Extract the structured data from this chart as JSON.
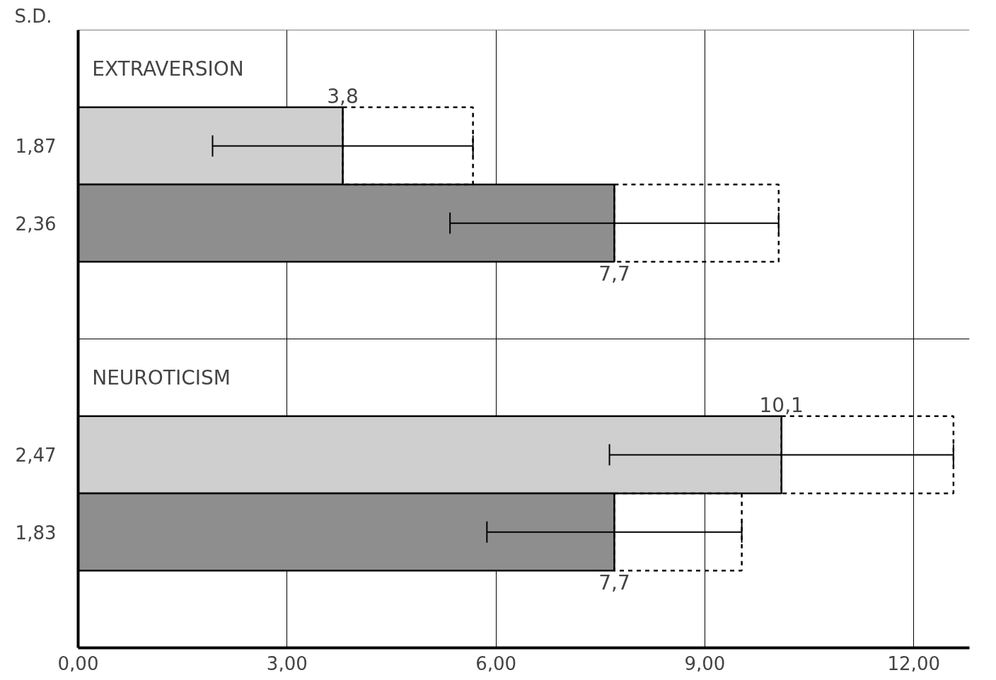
{
  "chart_data": {
    "type": "bar",
    "orientation": "horizontal",
    "categories": [
      null,
      "1,87",
      "2,36",
      null,
      null,
      "2,47",
      "1,83",
      null
    ],
    "values": [
      null,
      3.8,
      7.7,
      null,
      null,
      10.1,
      7.7,
      null
    ],
    "colors": [
      "#cfcfcf",
      "#cfcfcf",
      "#8e8e8e",
      "#cfcfcf",
      "#cfcfcf",
      "#cfcfcf",
      "#8e8e8e",
      "#cfcfcf"
    ],
    "errors": [
      null,
      1.87,
      2.36,
      null,
      null,
      2.47,
      1.83,
      null
    ],
    "value_labels": [
      null,
      "3,8",
      "7,7",
      null,
      null,
      "10,1",
      "7,7",
      null
    ],
    "annotations": [
      "S.D.",
      "EXTRAVERSION",
      "NEUROTICISM"
    ],
    "xlim": [
      0,
      12.8
    ],
    "xticks": [
      {
        "value": 0,
        "label": "0,00"
      },
      {
        "value": 3,
        "label": "3,00"
      },
      {
        "value": 6,
        "label": "6,00"
      },
      {
        "value": 9,
        "label": "9,00"
      },
      {
        "value": 12,
        "label": "12,00"
      }
    ],
    "grid": true
  }
}
